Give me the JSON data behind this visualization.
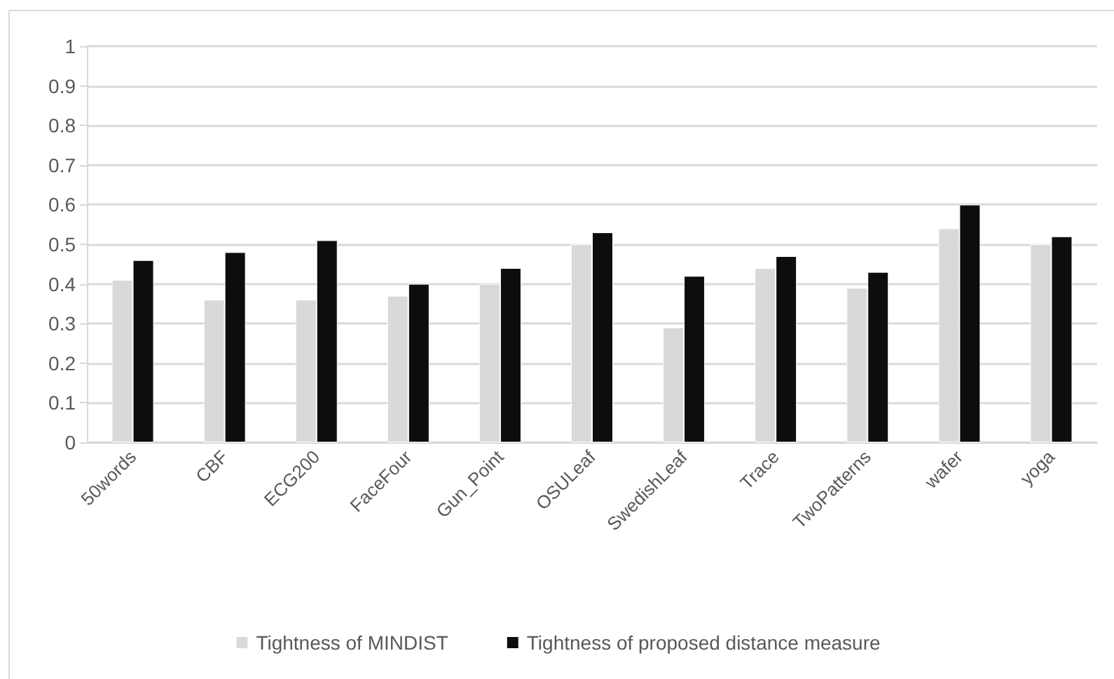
{
  "chart_data": {
    "type": "bar",
    "categories": [
      "50words",
      "CBF",
      "ECG200",
      "FaceFour",
      "Gun_Point",
      "OSULeaf",
      "SwedishLeaf",
      "Trace",
      "TwoPatterns",
      "wafer",
      "yoga"
    ],
    "series": [
      {
        "name": "Tightness of MINDIST",
        "color": "#d9d9d9",
        "values": [
          0.41,
          0.36,
          0.36,
          0.37,
          0.4,
          0.5,
          0.29,
          0.44,
          0.39,
          0.54,
          0.5
        ]
      },
      {
        "name": "Tightness of proposed distance measure",
        "color": "#0d0d0d",
        "values": [
          0.46,
          0.48,
          0.51,
          0.4,
          0.44,
          0.53,
          0.42,
          0.47,
          0.43,
          0.6,
          0.52
        ]
      }
    ],
    "ylim": [
      0,
      1
    ],
    "yticks": [
      0,
      0.1,
      0.2,
      0.3,
      0.4,
      0.5,
      0.6,
      0.7,
      0.8,
      0.9,
      1
    ],
    "grid": "y",
    "legend": "bottom"
  }
}
